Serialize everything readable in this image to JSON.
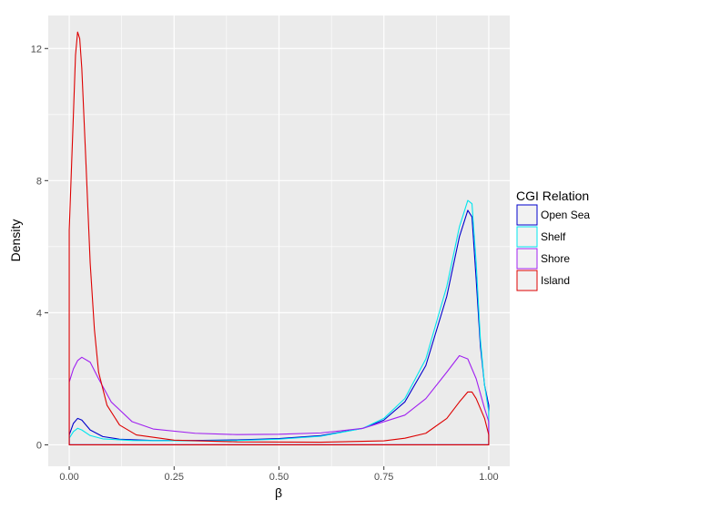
{
  "chart_data": {
    "type": "density",
    "title": "",
    "xlabel": "β",
    "ylabel": "Density",
    "xlim": [
      -0.05,
      1.05
    ],
    "ylim": [
      -0.65,
      13.0
    ],
    "x_ticks": [
      0.0,
      0.25,
      0.5,
      0.75,
      1.0
    ],
    "x_tick_labels": [
      "0.00",
      "0.25",
      "0.50",
      "0.75",
      "1.00"
    ],
    "y_ticks": [
      0,
      4,
      8,
      12
    ],
    "y_tick_labels": [
      "0",
      "4",
      "8",
      "12"
    ],
    "grid": true,
    "panel_background": "#ebebeb",
    "legend": {
      "title": "CGI Relation",
      "position": "right"
    },
    "series": [
      {
        "name": "Open Sea",
        "color": "#0000cc",
        "points": [
          [
            0.0,
            0.0
          ],
          [
            0.0,
            0.3
          ],
          [
            0.01,
            0.65
          ],
          [
            0.02,
            0.8
          ],
          [
            0.03,
            0.75
          ],
          [
            0.05,
            0.45
          ],
          [
            0.08,
            0.25
          ],
          [
            0.12,
            0.17
          ],
          [
            0.2,
            0.13
          ],
          [
            0.3,
            0.13
          ],
          [
            0.4,
            0.15
          ],
          [
            0.5,
            0.19
          ],
          [
            0.6,
            0.28
          ],
          [
            0.7,
            0.5
          ],
          [
            0.75,
            0.75
          ],
          [
            0.8,
            1.3
          ],
          [
            0.85,
            2.4
          ],
          [
            0.9,
            4.5
          ],
          [
            0.93,
            6.3
          ],
          [
            0.95,
            7.1
          ],
          [
            0.96,
            6.9
          ],
          [
            0.97,
            5.0
          ],
          [
            0.98,
            3.0
          ],
          [
            0.99,
            1.8
          ],
          [
            1.0,
            1.2
          ],
          [
            1.0,
            0.0
          ]
        ]
      },
      {
        "name": "Shelf",
        "color": "#00e5ee",
        "points": [
          [
            0.0,
            0.0
          ],
          [
            0.0,
            0.2
          ],
          [
            0.01,
            0.4
          ],
          [
            0.02,
            0.5
          ],
          [
            0.03,
            0.45
          ],
          [
            0.05,
            0.28
          ],
          [
            0.08,
            0.18
          ],
          [
            0.15,
            0.13
          ],
          [
            0.3,
            0.12
          ],
          [
            0.4,
            0.13
          ],
          [
            0.5,
            0.17
          ],
          [
            0.6,
            0.26
          ],
          [
            0.7,
            0.5
          ],
          [
            0.75,
            0.8
          ],
          [
            0.8,
            1.4
          ],
          [
            0.85,
            2.6
          ],
          [
            0.9,
            4.8
          ],
          [
            0.93,
            6.6
          ],
          [
            0.95,
            7.4
          ],
          [
            0.96,
            7.3
          ],
          [
            0.97,
            5.5
          ],
          [
            0.98,
            3.2
          ],
          [
            0.99,
            1.8
          ],
          [
            1.0,
            1.0
          ],
          [
            1.0,
            0.0
          ]
        ]
      },
      {
        "name": "Shore",
        "color": "#a020f0",
        "points": [
          [
            0.0,
            0.0
          ],
          [
            0.0,
            1.9
          ],
          [
            0.01,
            2.3
          ],
          [
            0.02,
            2.55
          ],
          [
            0.03,
            2.65
          ],
          [
            0.05,
            2.5
          ],
          [
            0.07,
            2.0
          ],
          [
            0.1,
            1.3
          ],
          [
            0.15,
            0.7
          ],
          [
            0.2,
            0.48
          ],
          [
            0.3,
            0.35
          ],
          [
            0.4,
            0.31
          ],
          [
            0.5,
            0.32
          ],
          [
            0.6,
            0.36
          ],
          [
            0.7,
            0.5
          ],
          [
            0.8,
            0.9
          ],
          [
            0.85,
            1.4
          ],
          [
            0.9,
            2.2
          ],
          [
            0.93,
            2.7
          ],
          [
            0.95,
            2.6
          ],
          [
            0.97,
            2.0
          ],
          [
            0.99,
            1.1
          ],
          [
            1.0,
            0.7
          ],
          [
            1.0,
            0.0
          ]
        ]
      },
      {
        "name": "Island",
        "color": "#dd0000",
        "points": [
          [
            0.0,
            0.0
          ],
          [
            0.0,
            6.5
          ],
          [
            0.01,
            10.0
          ],
          [
            0.015,
            11.8
          ],
          [
            0.02,
            12.5
          ],
          [
            0.025,
            12.3
          ],
          [
            0.03,
            11.4
          ],
          [
            0.04,
            8.5
          ],
          [
            0.05,
            5.5
          ],
          [
            0.06,
            3.5
          ],
          [
            0.07,
            2.2
          ],
          [
            0.09,
            1.2
          ],
          [
            0.12,
            0.6
          ],
          [
            0.16,
            0.3
          ],
          [
            0.25,
            0.14
          ],
          [
            0.4,
            0.09
          ],
          [
            0.6,
            0.08
          ],
          [
            0.75,
            0.12
          ],
          [
            0.8,
            0.2
          ],
          [
            0.85,
            0.35
          ],
          [
            0.9,
            0.8
          ],
          [
            0.93,
            1.3
          ],
          [
            0.95,
            1.6
          ],
          [
            0.96,
            1.6
          ],
          [
            0.97,
            1.4
          ],
          [
            0.99,
            0.8
          ],
          [
            1.0,
            0.3
          ],
          [
            1.0,
            0.0
          ]
        ]
      }
    ]
  }
}
